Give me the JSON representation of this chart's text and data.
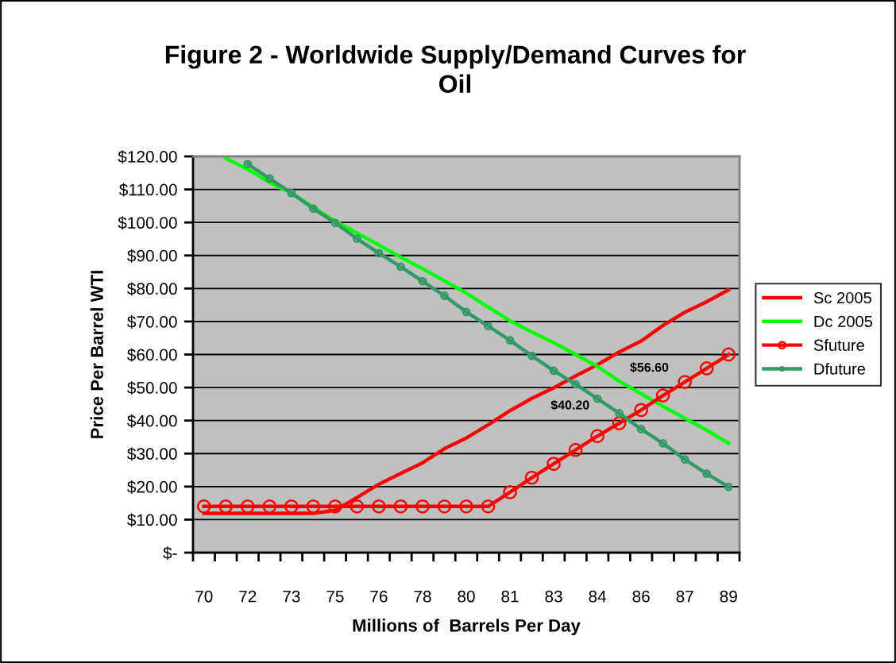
{
  "chart_data": {
    "type": "line",
    "title": "Figure 2 - Worldwide Supply/Demand Curves for\nOil",
    "xlabel": "Millions of  Barrels Per Day",
    "ylabel": "Price Per Barrel WTI",
    "categories": [
      "70",
      null,
      "72",
      null,
      "73",
      null,
      "75",
      null,
      "76",
      null,
      "78",
      null,
      "80",
      null,
      "81",
      null,
      "83",
      null,
      "84",
      null,
      "86",
      null,
      "87",
      null,
      "89"
    ],
    "series": [
      {
        "name": "Sc 2005",
        "color": "#ff0000",
        "marker": "none",
        "values": [
          11.9,
          11.9,
          11.9,
          11.9,
          11.9,
          11.9,
          12.8,
          16.7,
          20.7,
          24.0,
          27.2,
          31.5,
          34.7,
          38.7,
          43.0,
          46.7,
          49.9,
          53.5,
          56.9,
          60.8,
          64.1,
          68.8,
          72.8,
          76.0,
          79.6
        ]
      },
      {
        "name": "Dc 2005",
        "color": "#00ff00",
        "marker": "none",
        "values": [
          null,
          119.4,
          116.1,
          112.1,
          108.9,
          104.6,
          100.4,
          96.8,
          93.2,
          89.5,
          86.0,
          82.3,
          78.6,
          74.4,
          70.2,
          66.8,
          63.6,
          60.0,
          56.4,
          51.9,
          48.1,
          44.3,
          40.7,
          37.1,
          33.1
        ]
      },
      {
        "name": "Sfuture",
        "color": "#ff0000",
        "marker": "circle",
        "values": [
          14.0,
          14.0,
          14.0,
          14.0,
          14.0,
          14.0,
          14.0,
          14.0,
          14.0,
          14.0,
          14.0,
          14.0,
          14.0,
          14.0,
          18.3,
          22.7,
          26.9,
          31.1,
          35.3,
          39.2,
          43.2,
          47.6,
          51.7,
          55.8,
          60.0
        ]
      },
      {
        "name": "Dfuture",
        "color": "#339966",
        "marker": "circle",
        "values": [
          null,
          null,
          117.7,
          113.3,
          108.9,
          104.2,
          99.9,
          95.1,
          90.7,
          86.6,
          82.2,
          77.8,
          72.9,
          68.6,
          64.3,
          59.6,
          55.1,
          51.0,
          46.6,
          42.2,
          37.4,
          33.1,
          28.2,
          23.9,
          19.9
        ]
      }
    ],
    "ylim": [
      0,
      120
    ],
    "yticks": [
      {
        "value": 0,
        "label": "$-"
      },
      {
        "value": 10,
        "label": "$10.00"
      },
      {
        "value": 20,
        "label": "$20.00"
      },
      {
        "value": 30,
        "label": "$30.00"
      },
      {
        "value": 40,
        "label": "$40.00"
      },
      {
        "value": 50,
        "label": "$50.00"
      },
      {
        "value": 60,
        "label": "$60.00"
      },
      {
        "value": 70,
        "label": "$70.00"
      },
      {
        "value": 80,
        "label": "$80.00"
      },
      {
        "value": 90,
        "label": "$90.00"
      },
      {
        "value": 100,
        "label": "$100.00"
      },
      {
        "value": 110,
        "label": "$110.00"
      },
      {
        "value": 120,
        "label": "$120.00"
      }
    ],
    "grid": "y",
    "legend": "right",
    "annotations": [
      "$56.60",
      "$40.20"
    ]
  }
}
